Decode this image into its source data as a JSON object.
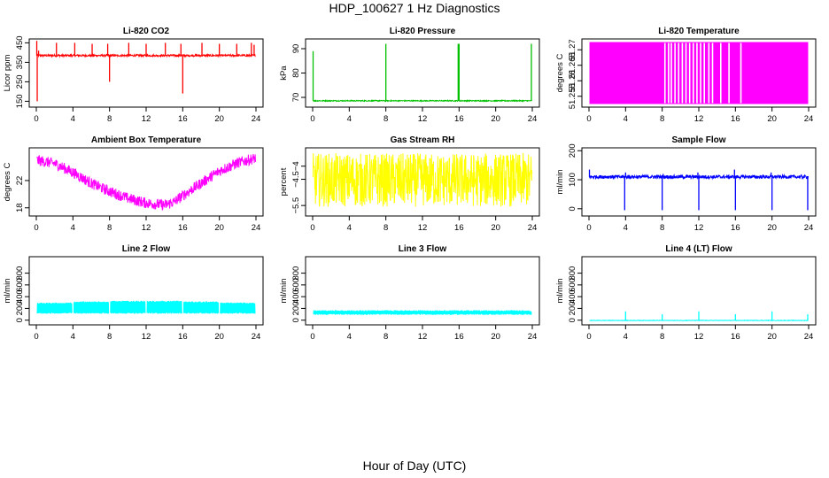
{
  "page_title": "HDP_100627  1 Hz Diagnostics",
  "x_label": "Hour of Day (UTC)",
  "chart_data": [
    {
      "type": "line",
      "title": "Li-820 CO2",
      "ylabel": "Licor ppm",
      "color": "#ff0000",
      "xlim": [
        0,
        24
      ],
      "xticks": [
        0,
        4,
        8,
        12,
        16,
        20,
        24
      ],
      "ylim": [
        120,
        470
      ],
      "yticks": [
        150,
        250,
        350,
        450
      ],
      "baseline": 385,
      "noise": 5,
      "spikes": [
        {
          "x": 0.05,
          "y": 460
        },
        {
          "x": 0.1,
          "y": 150
        },
        {
          "x": 0.25,
          "y": 410
        },
        {
          "x": 2.2,
          "y": 450
        },
        {
          "x": 4.2,
          "y": 450
        },
        {
          "x": 6.1,
          "y": 445
        },
        {
          "x": 7.8,
          "y": 445
        },
        {
          "x": 8.0,
          "y": 250
        },
        {
          "x": 10.1,
          "y": 450
        },
        {
          "x": 12.0,
          "y": 445
        },
        {
          "x": 14.1,
          "y": 450
        },
        {
          "x": 15.8,
          "y": 445
        },
        {
          "x": 16.0,
          "y": 190
        },
        {
          "x": 18.1,
          "y": 450
        },
        {
          "x": 20.0,
          "y": 445
        },
        {
          "x": 21.9,
          "y": 445
        },
        {
          "x": 23.5,
          "y": 450
        },
        {
          "x": 23.8,
          "y": 440
        }
      ]
    },
    {
      "type": "line",
      "title": "Li-820 Pressure",
      "ylabel": "kPa",
      "color": "#00c000",
      "xlim": [
        0,
        24
      ],
      "xticks": [
        0,
        4,
        8,
        12,
        16,
        20,
        24
      ],
      "ylim": [
        66,
        94
      ],
      "yticks": [
        70,
        80,
        90
      ],
      "baseline": 68.6,
      "noise": 0.2,
      "spikes": [
        {
          "x": 0.05,
          "y": 89
        },
        {
          "x": 8.0,
          "y": 92
        },
        {
          "x": 15.9,
          "y": 92
        },
        {
          "x": 16.0,
          "y": 92
        },
        {
          "x": 23.9,
          "y": 92
        }
      ]
    },
    {
      "type": "line",
      "title": "Li-820 Temperature",
      "ylabel": "degrees C",
      "color": "#ff00ff",
      "xlim": [
        0,
        24
      ],
      "xticks": [
        0,
        4,
        8,
        12,
        16,
        20,
        24
      ],
      "ylim": [
        51.2515,
        51.2735
      ],
      "yticks": [
        51.255,
        51.26,
        51.265,
        51.27
      ],
      "band": [
        51.2525,
        51.2725
      ],
      "gaps": [
        8.3,
        8.7,
        9.0,
        9.4,
        9.8,
        10.2,
        10.6,
        11.0,
        11.4,
        11.8,
        12.2,
        12.6,
        13.1,
        13.5,
        14.4,
        15.3,
        16.6
      ]
    },
    {
      "type": "line",
      "title": "Ambient Box Temperature",
      "ylabel": "degrees C",
      "color": "#ff00ff",
      "xlim": [
        0,
        24
      ],
      "xticks": [
        0,
        4,
        8,
        12,
        16,
        20,
        24
      ],
      "ylim": [
        16.8,
        26.8
      ],
      "yticks": [
        18,
        22
      ],
      "trend": [
        {
          "x": 0,
          "y": 25.0
        },
        {
          "x": 2,
          "y": 24.5
        },
        {
          "x": 4,
          "y": 23.2
        },
        {
          "x": 6,
          "y": 21.6
        },
        {
          "x": 8,
          "y": 20.4
        },
        {
          "x": 10,
          "y": 19.4
        },
        {
          "x": 12,
          "y": 18.7
        },
        {
          "x": 14,
          "y": 18.4
        },
        {
          "x": 15,
          "y": 18.8
        },
        {
          "x": 16,
          "y": 19.8
        },
        {
          "x": 18,
          "y": 21.6
        },
        {
          "x": 20,
          "y": 23.4
        },
        {
          "x": 22,
          "y": 24.6
        },
        {
          "x": 24,
          "y": 25.3
        }
      ],
      "noise": 0.8
    },
    {
      "type": "line",
      "title": "Gas Stream RH",
      "ylabel": "percent",
      "color": "#ffff00",
      "xlim": [
        0,
        24
      ],
      "xticks": [
        0,
        4,
        8,
        12,
        16,
        20,
        24
      ],
      "ylim": [
        -5.9,
        -3.3
      ],
      "yticks": [
        -5.5,
        -4.5,
        -4.0
      ],
      "band": [
        -5.55,
        -3.5
      ]
    },
    {
      "type": "line",
      "title": "Sample Flow",
      "ylabel": "ml/min",
      "color": "#0000ff",
      "xlim": [
        0,
        24
      ],
      "xticks": [
        0,
        4,
        8,
        12,
        16,
        20,
        24
      ],
      "ylim": [
        -25,
        210
      ],
      "yticks": [
        0,
        100,
        200
      ],
      "baseline": 110,
      "noise": 6,
      "spikes": [
        {
          "x": 0.05,
          "y": 135
        },
        {
          "x": 3.9,
          "y": -5
        },
        {
          "x": 4.0,
          "y": 125
        },
        {
          "x": 8.0,
          "y": -5
        },
        {
          "x": 8.1,
          "y": 120
        },
        {
          "x": 11.9,
          "y": 125
        },
        {
          "x": 12.0,
          "y": -5
        },
        {
          "x": 15.9,
          "y": 135
        },
        {
          "x": 16.0,
          "y": -5
        },
        {
          "x": 19.9,
          "y": 125
        },
        {
          "x": 20.0,
          "y": -5
        },
        {
          "x": 23.9,
          "y": -5
        }
      ]
    },
    {
      "type": "line",
      "title": "Line 2 Flow",
      "ylabel": "ml/min",
      "color": "#00ffff",
      "xlim": [
        0,
        24
      ],
      "xticks": [
        0,
        4,
        8,
        12,
        16,
        20,
        24
      ],
      "ylim": [
        -80,
        1080
      ],
      "yticks": [
        0,
        200,
        400,
        600,
        800
      ],
      "segments": [
        {
          "x0": 0.1,
          "x1": 3.9,
          "lo": 110,
          "hi": 300
        },
        {
          "x0": 4.1,
          "x1": 7.9,
          "lo": 110,
          "hi": 320
        },
        {
          "x0": 8.1,
          "x1": 11.9,
          "lo": 110,
          "hi": 330
        },
        {
          "x0": 12.1,
          "x1": 15.9,
          "lo": 110,
          "hi": 330
        },
        {
          "x0": 16.1,
          "x1": 19.9,
          "lo": 110,
          "hi": 320
        },
        {
          "x0": 20.1,
          "x1": 23.9,
          "lo": 110,
          "hi": 300
        }
      ]
    },
    {
      "type": "line",
      "title": "Line 3 Flow",
      "ylabel": "ml/min",
      "color": "#00ffff",
      "xlim": [
        0,
        24
      ],
      "xticks": [
        0,
        4,
        8,
        12,
        16,
        20,
        24
      ],
      "ylim": [
        -80,
        1080
      ],
      "yticks": [
        0,
        200,
        400,
        600,
        800
      ],
      "segments": [
        {
          "x0": 0.1,
          "x1": 23.9,
          "lo": 90,
          "hi": 170
        }
      ]
    },
    {
      "type": "line",
      "title": "Line 4 (LT) Flow",
      "ylabel": "ml/min",
      "color": "#00ffff",
      "xlim": [
        0,
        24
      ],
      "xticks": [
        0,
        4,
        8,
        12,
        16,
        20,
        24
      ],
      "ylim": [
        -80,
        1080
      ],
      "yticks": [
        0,
        200,
        400,
        600,
        800
      ],
      "baseline": -5,
      "noise": 4,
      "spikes": [
        {
          "x": 4.0,
          "y": 150
        },
        {
          "x": 8.0,
          "y": 100
        },
        {
          "x": 12.0,
          "y": 150
        },
        {
          "x": 16.0,
          "y": 100
        },
        {
          "x": 20.0,
          "y": 150
        },
        {
          "x": 23.9,
          "y": 100
        }
      ]
    }
  ]
}
